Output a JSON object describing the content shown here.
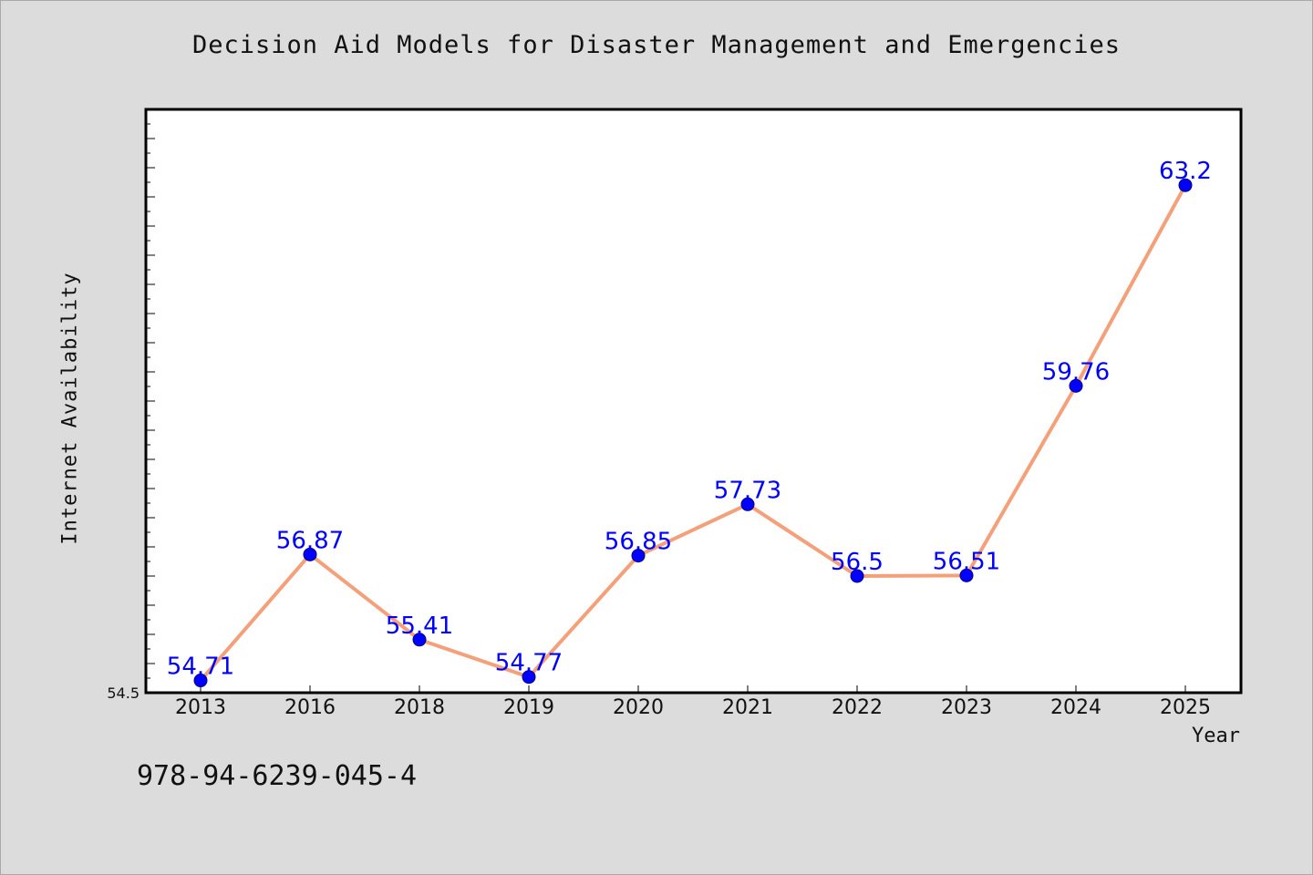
{
  "chart_data": {
    "type": "line",
    "title": "Decision Aid Models for Disaster Management and Emergencies",
    "xlabel": "Year",
    "ylabel": "Internet Availability",
    "categories": [
      "2013",
      "2016",
      "2018",
      "2019",
      "2020",
      "2021",
      "2022",
      "2023",
      "2024",
      "2025"
    ],
    "values": [
      54.71,
      56.87,
      55.41,
      54.77,
      56.85,
      57.73,
      56.5,
      56.51,
      59.76,
      63.2
    ],
    "data_labels": [
      "54.71",
      "56.87",
      "55.41",
      "54.77",
      "56.85",
      "57.73",
      "56.5",
      "56.51",
      "59.76",
      "63.2"
    ],
    "ylim": [
      54.5,
      64.5
    ],
    "y_min_label": "54.5",
    "grid": false,
    "legend": "none"
  },
  "footer_text": "978-94-6239-045-4",
  "colors": {
    "line": "#f4a07a",
    "marker": "#0000ff",
    "data_label": "#0000ff",
    "background": "#dcdcdc",
    "plot_bg": "#ffffff"
  }
}
